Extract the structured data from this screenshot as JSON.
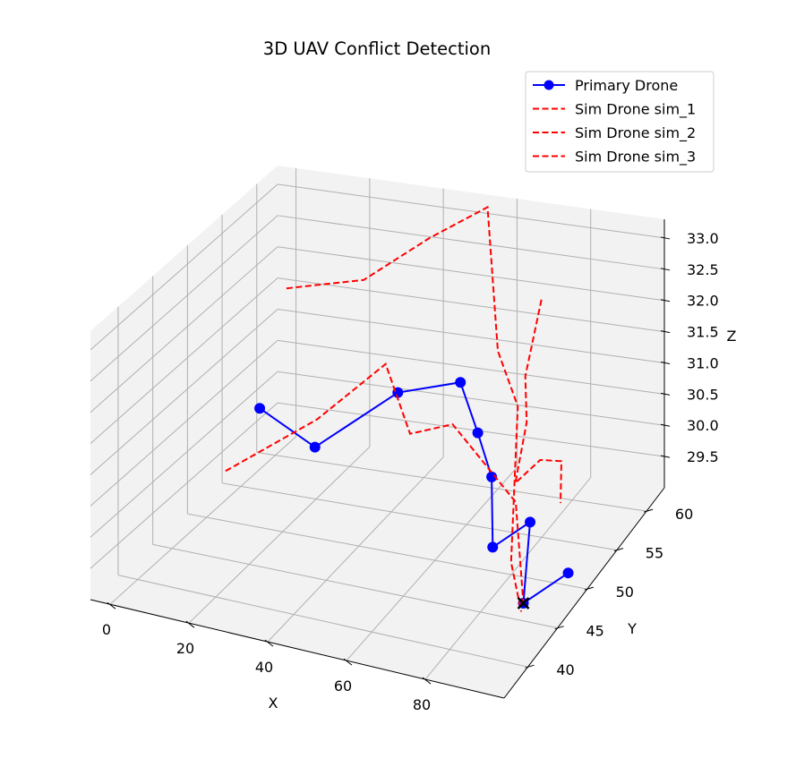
{
  "chart_data": {
    "type": "line",
    "projection": "3d",
    "title": "3D UAV Conflict Detection",
    "xlabel": "X",
    "ylabel": "Y",
    "zlabel": "Z",
    "xlim": [
      -5,
      100
    ],
    "ylim": [
      36,
      63
    ],
    "zlim": [
      29.0,
      33.3
    ],
    "xticks": [
      0,
      20,
      40,
      60,
      80
    ],
    "yticks": [
      40,
      45,
      50,
      55,
      60
    ],
    "zticks": [
      "29.5",
      "30.0",
      "30.5",
      "31.0",
      "31.5",
      "32.0",
      "32.5",
      "33.0"
    ],
    "grid": true,
    "pane_color": "#f2f2f2",
    "legend_position": "top-right",
    "series": [
      {
        "name": "Primary Drone",
        "color": "#0000ff",
        "style": "solid",
        "marker": "circle",
        "points": [
          {
            "x": 5,
            "y": 55,
            "z": 30.3
          },
          {
            "x": 25,
            "y": 52,
            "z": 30.2
          },
          {
            "x": 40,
            "y": 56,
            "z": 30.8
          },
          {
            "x": 55,
            "y": 57,
            "z": 31.0
          },
          {
            "x": 63,
            "y": 55,
            "z": 30.5
          },
          {
            "x": 70,
            "y": 53,
            "z": 30.1
          },
          {
            "x": 80,
            "y": 47,
            "z": 29.8
          },
          {
            "x": 85,
            "y": 50,
            "z": 29.9
          },
          {
            "x": 88,
            "y": 47,
            "z": 29.0
          },
          {
            "x": 95,
            "y": 50,
            "z": 29.2
          }
        ]
      },
      {
        "name": "Sim Drone sim_1",
        "color": "#ff0000",
        "style": "dashed",
        "points": [
          {
            "x": 5,
            "y": 50,
            "z": 29.8
          },
          {
            "x": 22,
            "y": 54,
            "z": 30.4
          },
          {
            "x": 35,
            "y": 57,
            "z": 31.1
          },
          {
            "x": 45,
            "y": 55,
            "z": 30.3
          },
          {
            "x": 58,
            "y": 54,
            "z": 30.7
          },
          {
            "x": 68,
            "y": 53,
            "z": 30.3
          },
          {
            "x": 78,
            "y": 52,
            "z": 29.9
          },
          {
            "x": 88,
            "y": 47,
            "z": 29.0
          }
        ]
      },
      {
        "name": "Sim Drone sim_2",
        "color": "#ff0000",
        "style": "dashed",
        "points": [
          {
            "x": 3,
            "y": 60,
            "z": 31.7
          },
          {
            "x": 22,
            "y": 61,
            "z": 31.9
          },
          {
            "x": 38,
            "y": 62,
            "z": 32.6
          },
          {
            "x": 52,
            "y": 63,
            "z": 33.1
          },
          {
            "x": 65,
            "y": 57,
            "z": 31.6
          },
          {
            "x": 72,
            "y": 56,
            "z": 30.9
          },
          {
            "x": 80,
            "y": 50,
            "z": 29.2
          },
          {
            "x": 89,
            "y": 46,
            "z": 29.0
          }
        ]
      },
      {
        "name": "Sim Drone sim_3",
        "color": "#ff0000",
        "style": "dashed",
        "points": [
          {
            "x": 75,
            "y": 58,
            "z": 32.4
          },
          {
            "x": 74,
            "y": 56,
            "z": 31.4
          },
          {
            "x": 76,
            "y": 55,
            "z": 30.8
          },
          {
            "x": 73,
            "y": 55,
            "z": 29.8
          },
          {
            "x": 78,
            "y": 56,
            "z": 30.1
          },
          {
            "x": 82,
            "y": 57,
            "z": 30.0
          },
          {
            "x": 85,
            "y": 55,
            "z": 29.6
          }
        ]
      }
    ],
    "conflict_markers": [
      {
        "x": 88,
        "y": 47,
        "z": 29.0,
        "marker": "x",
        "color": "#000000"
      }
    ]
  }
}
